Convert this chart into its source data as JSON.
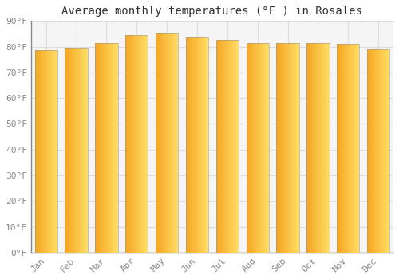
{
  "title": "Average monthly temperatures (°F ) in Rosales",
  "months": [
    "Jan",
    "Feb",
    "Mar",
    "Apr",
    "May",
    "Jun",
    "Jul",
    "Aug",
    "Sep",
    "Oct",
    "Nov",
    "Dec"
  ],
  "values": [
    78.5,
    79.5,
    81.5,
    84.5,
    85.0,
    83.5,
    82.5,
    81.5,
    81.5,
    81.5,
    81.0,
    79.0
  ],
  "bar_color_left": "#F5A623",
  "bar_color_right": "#FFD966",
  "ylim": [
    0,
    90
  ],
  "yticks": [
    0,
    10,
    20,
    30,
    40,
    50,
    60,
    70,
    80,
    90
  ],
  "ytick_labels": [
    "0°F",
    "10°F",
    "20°F",
    "30°F",
    "40°F",
    "50°F",
    "60°F",
    "70°F",
    "80°F",
    "90°F"
  ],
  "background_color": "#ffffff",
  "plot_bg_color": "#f5f5f5",
  "grid_color": "#dddddd",
  "bar_edge_color": "#888888",
  "title_fontsize": 10,
  "tick_fontsize": 8,
  "font_color": "#888888",
  "bar_width": 0.75
}
